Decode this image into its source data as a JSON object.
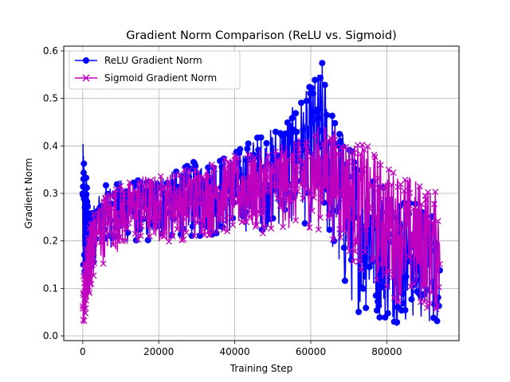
{
  "chart_data": {
    "type": "line",
    "title": "Gradient Norm Comparison (ReLU vs. Sigmoid)",
    "xlabel": "Training Step",
    "ylabel": "Gradient Norm",
    "xlim": [
      -5000,
      99000
    ],
    "ylim": [
      -0.01,
      0.61
    ],
    "xticks": [
      0,
      20000,
      40000,
      60000,
      80000
    ],
    "yticks": [
      0.0,
      0.1,
      0.2,
      0.3,
      0.4,
      0.5,
      0.6
    ],
    "xtick_labels": [
      "0",
      "20000",
      "40000",
      "60000",
      "80000"
    ],
    "ytick_labels": [
      "0.0",
      "0.1",
      "0.2",
      "0.3",
      "0.4",
      "0.5",
      "0.6"
    ],
    "grid": true,
    "legend_position": "upper-left",
    "series": [
      {
        "name": "ReLU Gradient Norm",
        "color": "#0000ff",
        "marker": "circle",
        "envelope": {
          "x": [
            0,
            300,
            600,
            1000,
            2000,
            4000,
            6000,
            10000,
            15000,
            20000,
            25000,
            30000,
            35000,
            40000,
            45000,
            50000,
            55000,
            60000,
            63000,
            66000,
            68000,
            70000,
            72000,
            75000,
            78000,
            80000,
            83000,
            86000,
            90000,
            94000
          ],
          "upper": [
            0.4,
            0.42,
            0.3,
            0.35,
            0.25,
            0.3,
            0.32,
            0.33,
            0.33,
            0.34,
            0.35,
            0.37,
            0.38,
            0.39,
            0.42,
            0.44,
            0.48,
            0.53,
            0.58,
            0.47,
            0.44,
            0.41,
            0.38,
            0.36,
            0.35,
            0.33,
            0.31,
            0.29,
            0.27,
            0.26
          ],
          "lower": [
            0.05,
            0.08,
            0.1,
            0.12,
            0.14,
            0.17,
            0.18,
            0.19,
            0.19,
            0.2,
            0.2,
            0.2,
            0.21,
            0.21,
            0.22,
            0.22,
            0.23,
            0.23,
            0.22,
            0.15,
            0.08,
            0.06,
            0.05,
            0.04,
            0.03,
            0.02,
            0.02,
            0.02,
            0.02,
            0.02
          ]
        }
      },
      {
        "name": "Sigmoid Gradient Norm",
        "color": "#bf00bf",
        "marker": "x",
        "envelope": {
          "x": [
            0,
            300,
            600,
            1000,
            2000,
            4000,
            6000,
            10000,
            15000,
            20000,
            25000,
            30000,
            35000,
            40000,
            45000,
            50000,
            55000,
            60000,
            63000,
            66000,
            68000,
            70000,
            72000,
            75000,
            78000,
            80000,
            83000,
            86000,
            90000,
            94000
          ],
          "upper": [
            0.12,
            0.14,
            0.16,
            0.19,
            0.24,
            0.29,
            0.31,
            0.32,
            0.34,
            0.34,
            0.35,
            0.36,
            0.37,
            0.38,
            0.39,
            0.4,
            0.41,
            0.43,
            0.45,
            0.44,
            0.43,
            0.42,
            0.41,
            0.4,
            0.38,
            0.36,
            0.35,
            0.34,
            0.32,
            0.3
          ],
          "lower": [
            0.02,
            0.02,
            0.03,
            0.05,
            0.09,
            0.13,
            0.16,
            0.18,
            0.19,
            0.19,
            0.2,
            0.2,
            0.21,
            0.21,
            0.21,
            0.22,
            0.22,
            0.22,
            0.22,
            0.2,
            0.18,
            0.16,
            0.14,
            0.12,
            0.1,
            0.08,
            0.07,
            0.06,
            0.05,
            0.04
          ]
        }
      }
    ]
  }
}
